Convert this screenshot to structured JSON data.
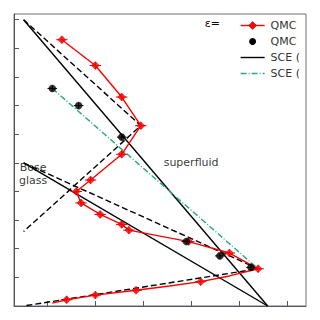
{
  "chart_data": {
    "type": "line",
    "series": [
      {
        "name": "QMC ",
        "color": "red",
        "marker": "diamond",
        "line_style": "solid",
        "x": [
          0.03,
          0.1,
          0.155,
          0.195,
          0.155,
          0.09,
          0.06,
          0.07,
          0.11,
          0.155,
          0.17,
          0.295,
          0.38,
          0.44,
          0.32,
          0.185,
          0.1,
          0.04
        ],
        "y": [
          0.93,
          0.84,
          0.73,
          0.63,
          0.53,
          0.44,
          0.4,
          0.36,
          0.32,
          0.285,
          0.265,
          0.225,
          0.185,
          0.13,
          0.085,
          0.055,
          0.038,
          0.022
        ],
        "xerr": 0.012,
        "yerr": 0.012,
        "line_x": [
          0.03,
          0.1,
          0.155,
          0.195,
          0.155,
          0.09,
          0.06,
          0.07,
          0.11,
          0.155,
          0.17,
          0.295,
          0.38,
          0.44,
          0.38,
          0.32,
          0.255,
          0.185,
          0.1,
          0.04,
          0.01
        ],
        "line_y": [
          0.93,
          0.84,
          0.73,
          0.63,
          0.53,
          0.44,
          0.4,
          0.36,
          0.32,
          0.285,
          0.265,
          0.225,
          0.185,
          0.13,
          0.105,
          0.085,
          0.07,
          0.055,
          0.038,
          0.022,
          0.01
        ]
      },
      {
        "name": "QMC ",
        "color": "black",
        "marker": "circle",
        "line_style": "none",
        "x": [
          0.01,
          0.065,
          0.155,
          0.29,
          0.36,
          0.425
        ],
        "y": [
          0.76,
          0.7,
          0.59,
          0.225,
          0.175,
          0.135
        ],
        "xerr": 0.01,
        "yerr": 0.01
      },
      {
        "name": "SCE (",
        "color": "black",
        "line_style": "solid",
        "lines": [
          {
            "x": [
              -0.05,
              0.46
            ],
            "y": [
              1.0,
              0.0
            ]
          },
          {
            "x": [
              -0.05,
              0.46
            ],
            "y": [
              0.5,
              0.0
            ]
          }
        ]
      },
      {
        "color": "black",
        "line_style": "dashed",
        "lines": [
          {
            "x": [
              -0.05,
              0.195,
              -0.05
            ],
            "y": [
              1.0,
              0.63,
              0.26
            ]
          },
          {
            "x": [
              -0.05,
              0.44,
              -0.05
            ],
            "y": [
              0.5,
              0.13,
              0.0
            ]
          }
        ]
      },
      {
        "name": "SCE (",
        "color": "#2aaa8a",
        "line_style": "dashdot",
        "x": [
          0.01,
          0.44
        ],
        "y": [
          0.76,
          0.13
        ]
      }
    ],
    "annotations": [
      {
        "text": "superfluid",
        "x": 0.3,
        "y": 0.5
      },
      {
        "text": "Bose\nglass",
        "x": -0.03,
        "y": 0.46
      },
      {
        "text": "ε="
      }
    ],
    "xlim": [
      -0.07,
      0.54
    ],
    "xticks": [
      0.0,
      0.1,
      0.2,
      0.3,
      0.4,
      0.5
    ],
    "ylim": [
      0.0,
      1.02
    ],
    "yticks": [
      0.0,
      0.1,
      0.2,
      0.3,
      0.4,
      0.5,
      0.6,
      0.7,
      0.8,
      0.9,
      1.0
    ],
    "tick_labels": false,
    "grid": false,
    "legend": "upper right"
  }
}
